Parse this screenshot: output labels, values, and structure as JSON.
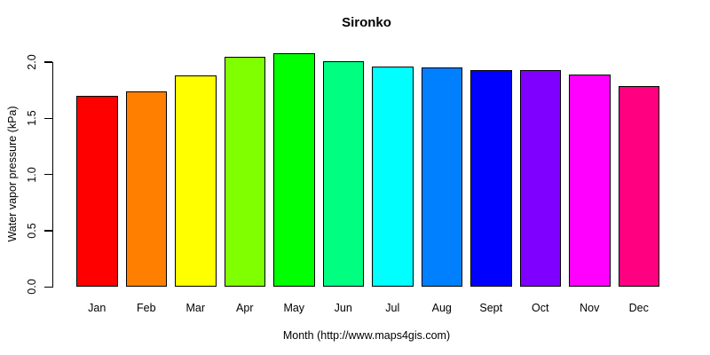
{
  "chart_data": {
    "type": "bar",
    "title": "Sironko",
    "xlabel": "Month (http://www.maps4gis.com)",
    "ylabel": "Water vapor pressure (kPa)",
    "categories": [
      "Jan",
      "Feb",
      "Mar",
      "Apr",
      "May",
      "Jun",
      "Jul",
      "Aug",
      "Sept",
      "Oct",
      "Nov",
      "Dec"
    ],
    "values": [
      1.7,
      1.74,
      1.88,
      2.05,
      2.08,
      2.01,
      1.96,
      1.95,
      1.93,
      1.93,
      1.89,
      1.79
    ],
    "bar_colors": [
      "#FF0000",
      "#FF8000",
      "#FFFF00",
      "#80FF00",
      "#00FF00",
      "#00FF80",
      "#00FFFF",
      "#0080FF",
      "#0000FF",
      "#8000FF",
      "#FF00FF",
      "#FF0080"
    ],
    "bar_border_color": "#000000",
    "axis_color": "#000000",
    "background_color": "#FFFFFF",
    "yticks": [
      "0.0",
      "0.5",
      "1.0",
      "1.5",
      "2.0"
    ],
    "ylim": [
      0.0,
      2.0
    ],
    "grid": false,
    "legend": false
  }
}
